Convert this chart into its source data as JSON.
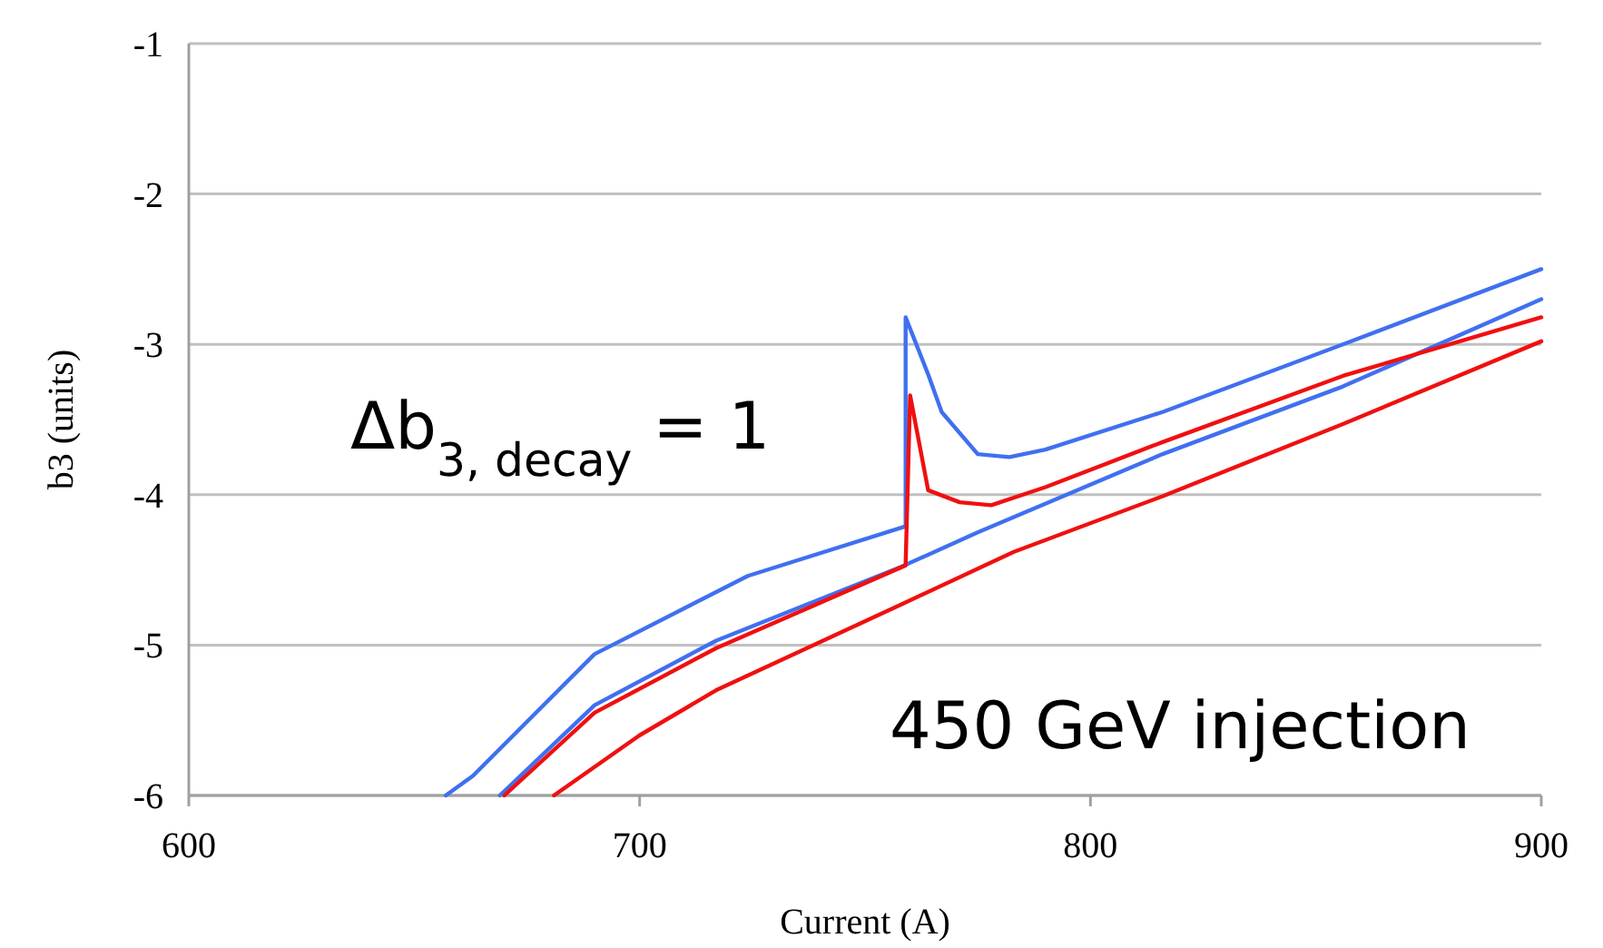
{
  "chart_data": {
    "type": "line",
    "xlabel": "Current (A)",
    "ylabel": "b3 (units)",
    "xlim": [
      600,
      900
    ],
    "ylim": [
      -6,
      -1
    ],
    "xticks": [
      600,
      700,
      800,
      900
    ],
    "yticks": [
      -1,
      -2,
      -3,
      -4,
      -5,
      -6
    ],
    "grid": "y",
    "marker": "none",
    "line_style": "solid",
    "annotations": [
      "Δb$_{3, decay}$ = 1",
      "450 GeV injection"
    ],
    "series": [
      {
        "color": "#4070f0",
        "x": [
          657,
          663,
          690,
          724,
          759,
          759,
          764,
          767,
          775,
          782,
          790,
          816,
          856,
          900
        ],
        "values": [
          -6,
          -5.87,
          -5.06,
          -4.54,
          -4.21,
          -2.82,
          -3.2,
          -3.45,
          -3.73,
          -3.75,
          -3.7,
          -3.45,
          -3.0,
          -2.5
        ]
      },
      {
        "color": "#4070f0",
        "x": [
          669,
          690,
          717,
          758,
          775,
          816,
          856,
          900
        ],
        "values": [
          -6,
          -5.4,
          -4.97,
          -4.48,
          -4.25,
          -3.73,
          -3.28,
          -2.7
        ]
      },
      {
        "color": "#f01010",
        "x": [
          670,
          690,
          717,
          759,
          760,
          764,
          771,
          778,
          790,
          816,
          856,
          900
        ],
        "values": [
          -6,
          -5.45,
          -5.02,
          -4.47,
          -3.34,
          -3.97,
          -4.05,
          -4.07,
          -3.95,
          -3.65,
          -3.21,
          -2.82
        ]
      },
      {
        "color": "#f01010",
        "x": [
          681,
          700,
          717,
          758,
          783,
          816,
          856,
          900
        ],
        "values": [
          -6,
          -5.6,
          -5.3,
          -4.73,
          -4.38,
          -4.01,
          -3.53,
          -2.98
        ]
      }
    ]
  }
}
